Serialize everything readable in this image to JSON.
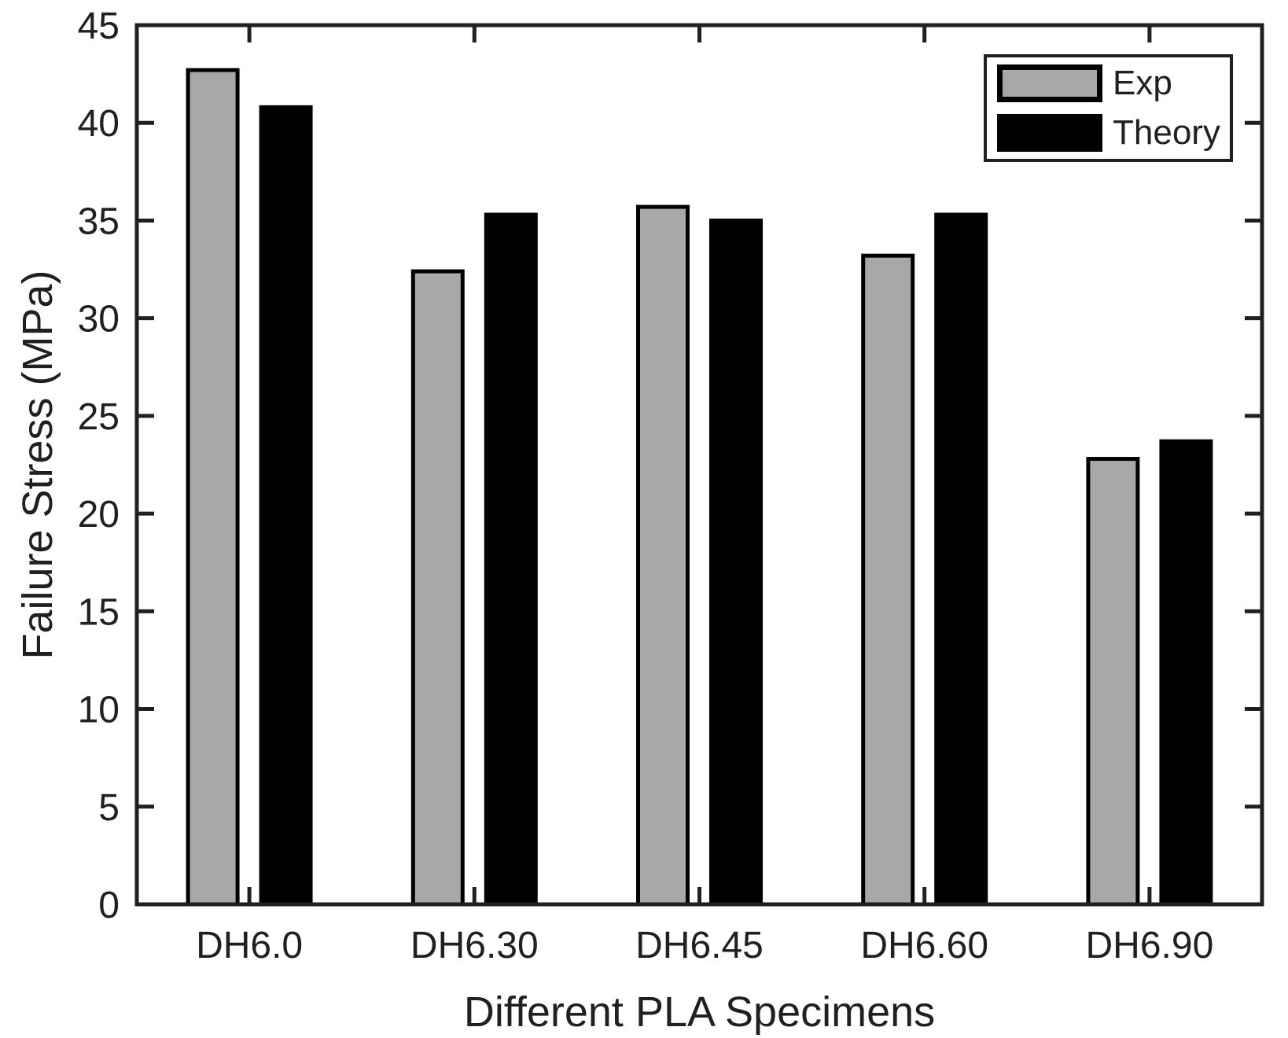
{
  "chart_data": {
    "type": "bar",
    "title": "",
    "xlabel": "Different PLA Specimens",
    "ylabel": "Failure Stress (MPa)",
    "categories": [
      "DH6.0",
      "DH6.30",
      "DH6.45",
      "DH6.60",
      "DH6.90"
    ],
    "series": [
      {
        "name": "Exp",
        "color": "#A8A8A8",
        "values": [
          42.7,
          32.4,
          35.7,
          33.2,
          22.8
        ]
      },
      {
        "name": "Theory",
        "color": "#000000",
        "values": [
          40.8,
          35.3,
          35.0,
          35.3,
          23.7
        ]
      }
    ],
    "ylim": [
      0,
      45
    ],
    "yticks": [
      0,
      5,
      10,
      15,
      20,
      25,
      30,
      35,
      40,
      45
    ],
    "grid": false,
    "box": true,
    "tick_direction": "in",
    "legend_position": "top-right",
    "bar_edge_color": "#000000",
    "axis_color": "#202020",
    "text_color": "#202020",
    "background_color": "#ffffff"
  }
}
